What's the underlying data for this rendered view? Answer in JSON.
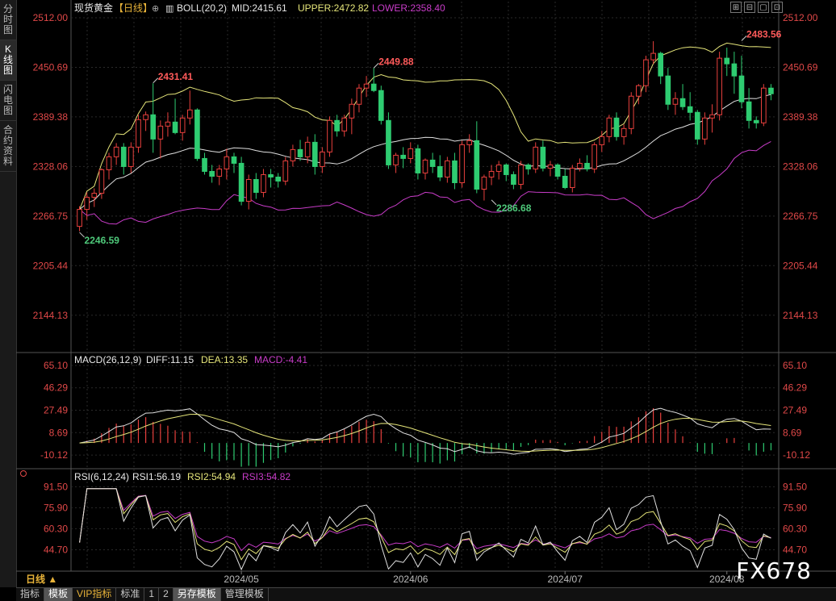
{
  "sidebar": {
    "items": [
      {
        "label": "分时图",
        "active": false
      },
      {
        "label": "K线图",
        "active": true
      },
      {
        "label": "闪电图",
        "active": false
      },
      {
        "label": "合约资料",
        "active": false
      }
    ]
  },
  "main_panel": {
    "symbol": "现货黄金",
    "period_tag": "【日线】",
    "indicator": "BOLL(20,2)",
    "mid_label": "MID:2415.61",
    "upper_label": "UPPER:2472.82",
    "lower_label": "LOWER:2358.40",
    "y_ticks": [
      "2512.00",
      "2450.69",
      "2389.38",
      "2328.06",
      "2266.75",
      "2205.44",
      "2144.13"
    ]
  },
  "macd_panel": {
    "title": "MACD(26,12,9)",
    "diff_label": "DIFF:11.15",
    "dea_label": "DEA:13.35",
    "macd_label": "MACD:-4.41",
    "y_ticks": [
      "65.10",
      "46.29",
      "27.49",
      "8.69",
      "-10.12"
    ]
  },
  "rsi_panel": {
    "title": "RSI(6,12,24)",
    "rsi1_label": "RSI1:56.19",
    "rsi2_label": "RSI2:54.94",
    "rsi3_label": "RSI3:54.82",
    "y_ticks": [
      "91.50",
      "75.90",
      "60.30",
      "44.70"
    ]
  },
  "x_axis": {
    "period_button": "日线 ▲",
    "months": [
      "2024/05",
      "2024/06",
      "2024/07",
      "2024/08"
    ]
  },
  "bottom_tabs": [
    {
      "label": "指标",
      "active": false,
      "vip": false
    },
    {
      "label": "模板",
      "active": true,
      "vip": false
    },
    {
      "label": "VIP指标",
      "active": false,
      "vip": true
    },
    {
      "label": "标准",
      "active": false,
      "vip": false
    },
    {
      "label": "1",
      "active": false,
      "vip": false
    },
    {
      "label": "2",
      "active": false,
      "vip": false
    },
    {
      "label": "另存模板",
      "active": true,
      "vip": false
    },
    {
      "label": "管理模板",
      "active": false,
      "vip": false
    }
  ],
  "watermark": "FX678",
  "colors": {
    "up": "#e8403d",
    "down": "#2ecc71",
    "mid": "#e0e0e0",
    "upper": "#e6e67a",
    "lower": "#c83cc8",
    "axis_text": "#e04848",
    "grid": "#2a2a2a"
  },
  "chart_data": {
    "type": "candlestick",
    "title": "现货黄金【日线】",
    "ylim": [
      2100,
      2512
    ],
    "annotations": [
      {
        "text": "2246.59",
        "value": 2246.59,
        "index": 0
      },
      {
        "text": "2431.41",
        "value": 2431.41,
        "index": 10
      },
      {
        "text": "2449.88",
        "value": 2449.88,
        "index": 40
      },
      {
        "text": "2286.68",
        "value": 2286.68,
        "index": 56
      },
      {
        "text": "2483.56",
        "value": 2483.56,
        "index": 90
      }
    ],
    "candles": [
      [
        2254,
        2279,
        2248,
        2275
      ],
      [
        2275,
        2296,
        2262,
        2290
      ],
      [
        2290,
        2301,
        2278,
        2295
      ],
      [
        2295,
        2326,
        2288,
        2324
      ],
      [
        2324,
        2345,
        2312,
        2340
      ],
      [
        2340,
        2357,
        2330,
        2352
      ],
      [
        2352,
        2357,
        2318,
        2328
      ],
      [
        2328,
        2358,
        2320,
        2352
      ],
      [
        2352,
        2392,
        2345,
        2386
      ],
      [
        2386,
        2396,
        2372,
        2392
      ],
      [
        2392,
        2431,
        2345,
        2362
      ],
      [
        2362,
        2385,
        2338,
        2378
      ],
      [
        2378,
        2395,
        2365,
        2383
      ],
      [
        2383,
        2412,
        2368,
        2370
      ],
      [
        2370,
        2392,
        2360,
        2388
      ],
      [
        2388,
        2422,
        2380,
        2398
      ],
      [
        2398,
        2400,
        2335,
        2338
      ],
      [
        2338,
        2345,
        2318,
        2322
      ],
      [
        2322,
        2330,
        2308,
        2316
      ],
      [
        2316,
        2330,
        2305,
        2325
      ],
      [
        2325,
        2350,
        2312,
        2340
      ],
      [
        2340,
        2345,
        2320,
        2332
      ],
      [
        2332,
        2340,
        2280,
        2285
      ],
      [
        2285,
        2318,
        2275,
        2312
      ],
      [
        2312,
        2320,
        2288,
        2296
      ],
      [
        2296,
        2325,
        2290,
        2318
      ],
      [
        2318,
        2325,
        2302,
        2315
      ],
      [
        2315,
        2320,
        2302,
        2310
      ],
      [
        2310,
        2340,
        2305,
        2335
      ],
      [
        2335,
        2355,
        2328,
        2349
      ],
      [
        2349,
        2361,
        2335,
        2340
      ],
      [
        2340,
        2365,
        2332,
        2358
      ],
      [
        2358,
        2368,
        2318,
        2328
      ],
      [
        2328,
        2352,
        2320,
        2346
      ],
      [
        2346,
        2390,
        2340,
        2385
      ],
      [
        2385,
        2392,
        2365,
        2372
      ],
      [
        2372,
        2392,
        2365,
        2388
      ],
      [
        2388,
        2412,
        2368,
        2405
      ],
      [
        2405,
        2430,
        2395,
        2425
      ],
      [
        2425,
        2440,
        2414,
        2430
      ],
      [
        2430,
        2450,
        2420,
        2422
      ],
      [
        2422,
        2428,
        2380,
        2385
      ],
      [
        2385,
        2395,
        2325,
        2330
      ],
      [
        2330,
        2345,
        2320,
        2342
      ],
      [
        2342,
        2352,
        2326,
        2338
      ],
      [
        2338,
        2358,
        2332,
        2350
      ],
      [
        2350,
        2355,
        2312,
        2320
      ],
      [
        2320,
        2338,
        2312,
        2336
      ],
      [
        2336,
        2345,
        2320,
        2328
      ],
      [
        2328,
        2342,
        2310,
        2315
      ],
      [
        2315,
        2340,
        2308,
        2335
      ],
      [
        2335,
        2345,
        2300,
        2308
      ],
      [
        2308,
        2360,
        2302,
        2355
      ],
      [
        2355,
        2368,
        2345,
        2360
      ],
      [
        2360,
        2384,
        2295,
        2300
      ],
      [
        2300,
        2318,
        2286,
        2315
      ],
      [
        2315,
        2330,
        2305,
        2322
      ],
      [
        2322,
        2335,
        2312,
        2330
      ],
      [
        2330,
        2332,
        2310,
        2318
      ],
      [
        2318,
        2322,
        2300,
        2306
      ],
      [
        2306,
        2335,
        2300,
        2330
      ],
      [
        2330,
        2332,
        2318,
        2325
      ],
      [
        2325,
        2358,
        2320,
        2352
      ],
      [
        2352,
        2360,
        2322,
        2326
      ],
      [
        2326,
        2335,
        2316,
        2330
      ],
      [
        2330,
        2332,
        2312,
        2316
      ],
      [
        2316,
        2325,
        2300,
        2302
      ],
      [
        2302,
        2330,
        2296,
        2326
      ],
      [
        2326,
        2338,
        2322,
        2332
      ],
      [
        2332,
        2342,
        2322,
        2325
      ],
      [
        2325,
        2358,
        2320,
        2355
      ],
      [
        2355,
        2372,
        2346,
        2365
      ],
      [
        2365,
        2392,
        2358,
        2388
      ],
      [
        2388,
        2395,
        2360,
        2365
      ],
      [
        2365,
        2380,
        2355,
        2375
      ],
      [
        2375,
        2420,
        2368,
        2415
      ],
      [
        2415,
        2430,
        2405,
        2428
      ],
      [
        2428,
        2465,
        2420,
        2460
      ],
      [
        2460,
        2483,
        2455,
        2468
      ],
      [
        2468,
        2470,
        2430,
        2440
      ],
      [
        2440,
        2450,
        2398,
        2405
      ],
      [
        2405,
        2420,
        2392,
        2412
      ],
      [
        2412,
        2430,
        2398,
        2402
      ],
      [
        2402,
        2420,
        2385,
        2395
      ],
      [
        2395,
        2398,
        2355,
        2362
      ],
      [
        2362,
        2395,
        2355,
        2388
      ],
      [
        2388,
        2405,
        2370,
        2392
      ],
      [
        2392,
        2470,
        2385,
        2462
      ],
      [
        2462,
        2475,
        2440,
        2455
      ],
      [
        2455,
        2470,
        2418,
        2440
      ],
      [
        2440,
        2465,
        2400,
        2408
      ],
      [
        2408,
        2425,
        2375,
        2385
      ],
      [
        2385,
        2390,
        2375,
        2382
      ],
      [
        2382,
        2430,
        2378,
        2425
      ],
      [
        2425,
        2430,
        2410,
        2418
      ]
    ]
  }
}
